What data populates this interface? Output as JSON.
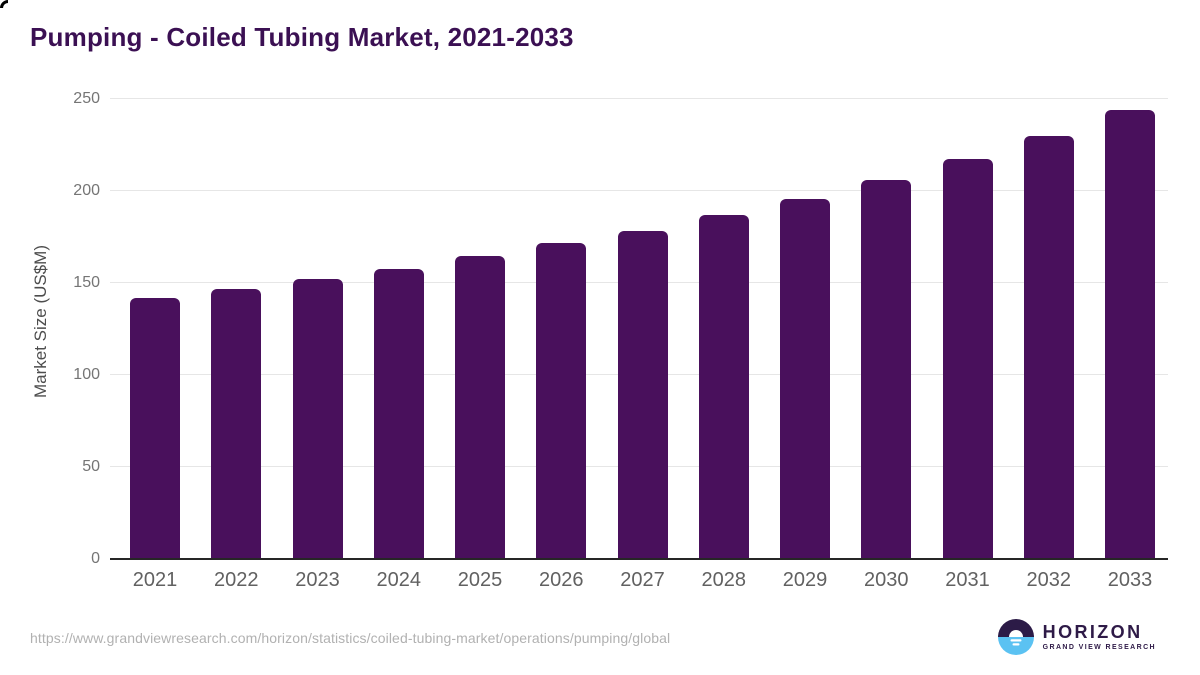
{
  "page": {
    "title": "Pumping - Coiled Tubing Market, 2021-2033"
  },
  "chart_data": {
    "type": "bar",
    "title": "Pumping - Coiled Tubing Market, 2021-2033",
    "categories": [
      "2021",
      "2022",
      "2023",
      "2024",
      "2025",
      "2026",
      "2027",
      "2028",
      "2029",
      "2030",
      "2031",
      "2032",
      "2033"
    ],
    "values": [
      142,
      146.5,
      152,
      157.5,
      164.5,
      171.5,
      178.5,
      187,
      195.5,
      206,
      217.5,
      230,
      244
    ],
    "xlabel": "",
    "ylabel": "Market Size (US$M)",
    "ylim": [
      0,
      250
    ],
    "yticks": [
      0,
      50,
      100,
      150,
      200,
      250
    ],
    "grid": true,
    "legend": "none",
    "bar_color": "#49105c",
    "gridline_color": "#e6e6e6",
    "axis_line_color": "#262626"
  },
  "footer": {
    "source_url": "https://www.grandviewresearch.com/horizon/statistics/coiled-tubing-market/operations/pumping/global",
    "logo": {
      "brand": "HORIZON",
      "tagline": "GRAND VIEW RESEARCH",
      "color_dark": "#2c1b47",
      "color_blue": "#5bc2f2",
      "color_sun": "#ffffff"
    }
  }
}
